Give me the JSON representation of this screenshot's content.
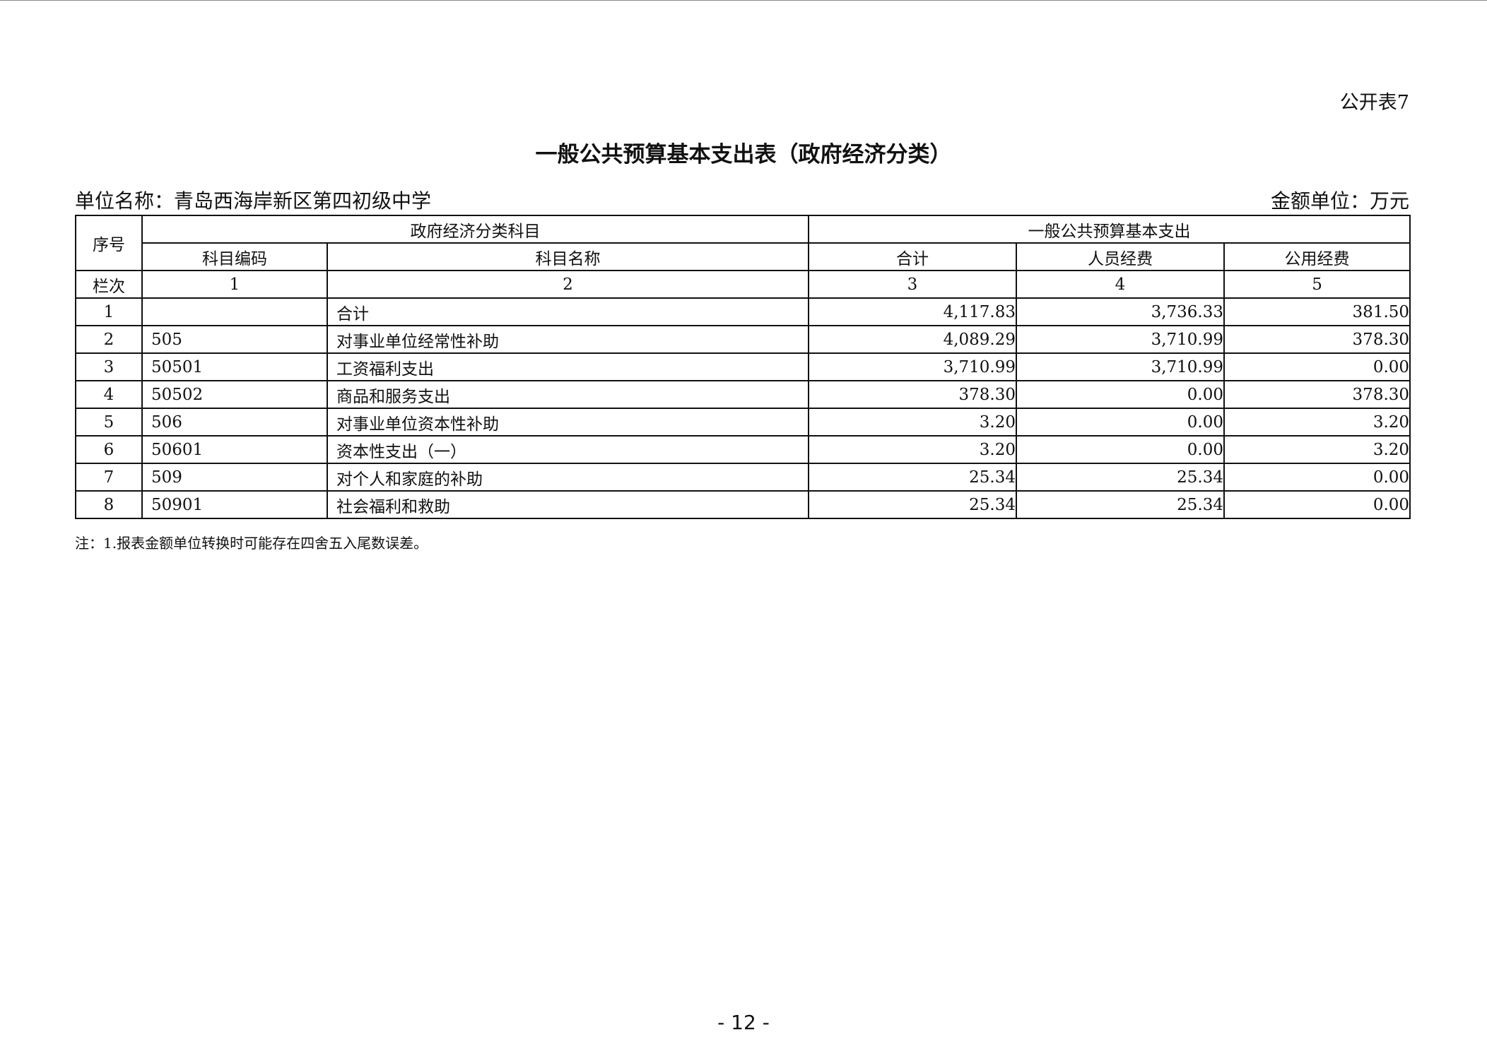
{
  "form_no": "公开表7",
  "title": "一般公共预算基本支出表（政府经济分类）",
  "unit_name": "单位名称：青岛西海岸新区第四初级中学",
  "amount_unit": "金额单位：万元",
  "header": {
    "seq": "序号",
    "group_left": "政府经济分类科目",
    "group_right": "一般公共预算基本支出",
    "code": "科目编码",
    "name": "科目名称",
    "total": "合计",
    "personnel": "人员经费",
    "public": "公用经费",
    "col_label": "栏次",
    "col_nums": [
      "1",
      "2",
      "3",
      "4",
      "5"
    ]
  },
  "rows": [
    {
      "seq": "1",
      "code": "",
      "name": "合计",
      "total": "4,117.83",
      "personnel": "3,736.33",
      "public": "381.50"
    },
    {
      "seq": "2",
      "code": "505",
      "name": "对事业单位经常性补助",
      "total": "4,089.29",
      "personnel": "3,710.99",
      "public": "378.30"
    },
    {
      "seq": "3",
      "code": "50501",
      "name": "工资福利支出",
      "total": "3,710.99",
      "personnel": "3,710.99",
      "public": "0.00"
    },
    {
      "seq": "4",
      "code": "50502",
      "name": "商品和服务支出",
      "total": "378.30",
      "personnel": "0.00",
      "public": "378.30"
    },
    {
      "seq": "5",
      "code": "506",
      "name": "对事业单位资本性补助",
      "total": "3.20",
      "personnel": "0.00",
      "public": "3.20"
    },
    {
      "seq": "6",
      "code": "50601",
      "name": "资本性支出（一）",
      "total": "3.20",
      "personnel": "0.00",
      "public": "3.20"
    },
    {
      "seq": "7",
      "code": "509",
      "name": "对个人和家庭的补助",
      "total": "25.34",
      "personnel": "25.34",
      "public": "0.00"
    },
    {
      "seq": "8",
      "code": "50901",
      "name": "社会福利和救助",
      "total": "25.34",
      "personnel": "25.34",
      "public": "0.00"
    }
  ],
  "note": "注：1.报表金额单位转换时可能存在四舍五入尾数误差。",
  "page_number": "- 12 -"
}
